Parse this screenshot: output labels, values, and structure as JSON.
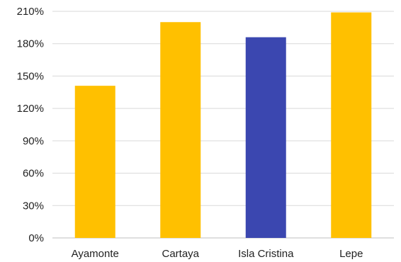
{
  "chart_data": {
    "type": "bar",
    "title": "",
    "xlabel": "",
    "ylabel": "",
    "categories": [
      "Ayamonte",
      "Cartaya",
      "Isla Cristina",
      "Lepe"
    ],
    "values": [
      141,
      200,
      186,
      209
    ],
    "value_unit": "%",
    "ylim": [
      0,
      210
    ],
    "yticks": [
      0,
      30,
      60,
      90,
      120,
      150,
      180,
      210
    ],
    "ytick_labels": [
      "0%",
      "30%",
      "60%",
      "90%",
      "120%",
      "150%",
      "180%",
      "210%"
    ],
    "grid": true,
    "legend": "none",
    "colors": [
      "#FFC000",
      "#FFC000",
      "#3B47B0",
      "#FFC000"
    ]
  }
}
